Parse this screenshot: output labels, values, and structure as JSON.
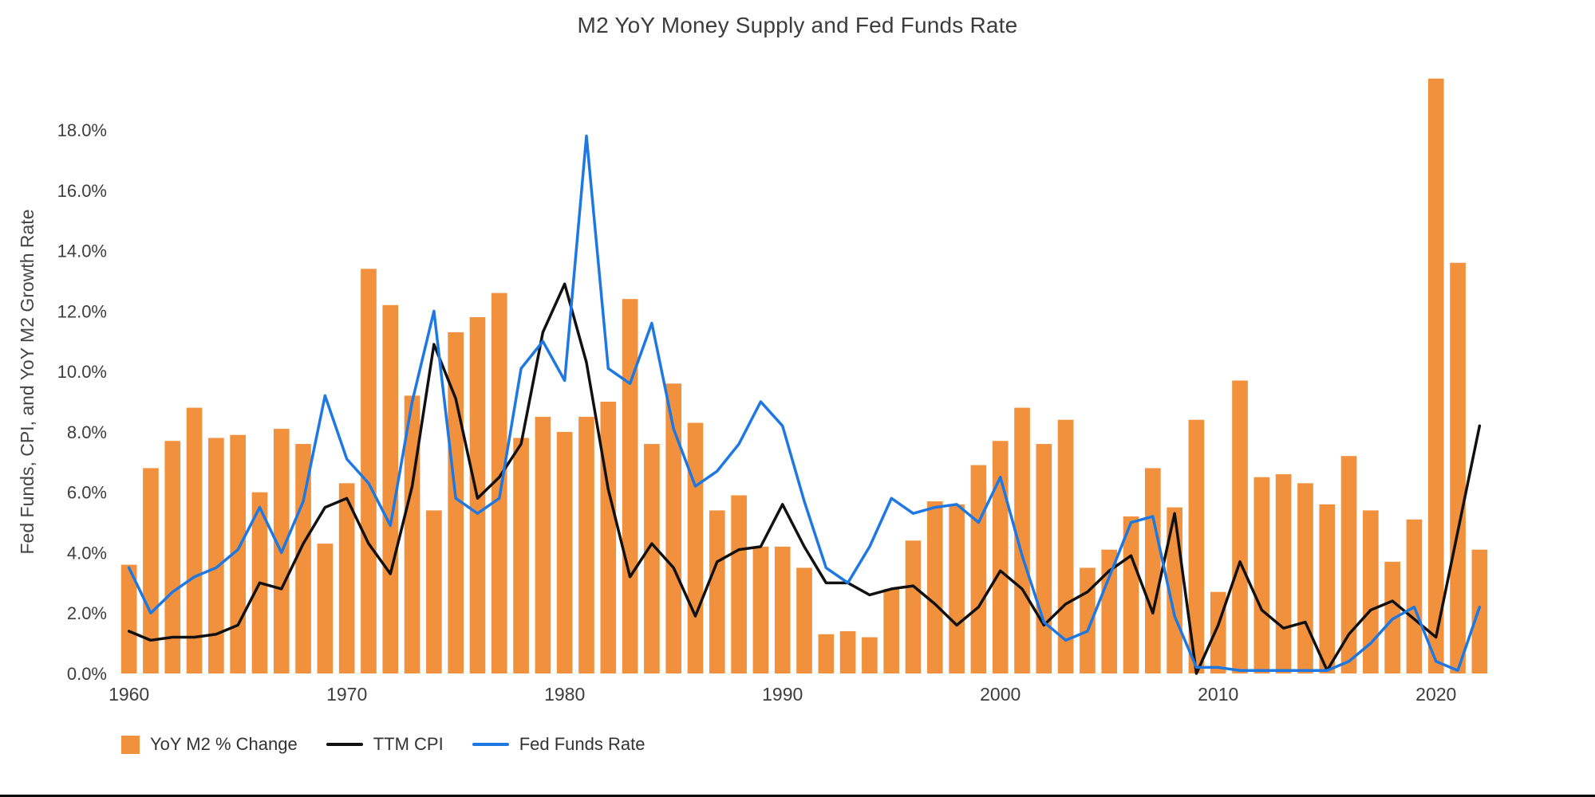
{
  "title": "M2 YoY Money Supply and Fed Funds Rate",
  "y_axis_label": "Fed Funds, CPI, and YoY M2 Growth Rate",
  "legend": {
    "m2": {
      "label": "YoY M2 % Change"
    },
    "cpi": {
      "label": "TTM CPI"
    },
    "fed": {
      "label": "Fed Funds Rate"
    }
  },
  "colors": {
    "bar_orange": "#F2913D",
    "cpi_black": "#111111",
    "fed_blue": "#1E78E2",
    "tick_text": "#3d3d3d"
  },
  "chart_data": {
    "type": "bar",
    "title": "M2 YoY Money Supply and Fed Funds Rate",
    "xlabel": "",
    "ylabel": "Fed Funds, CPI, and YoY M2 Growth Rate",
    "grid": false,
    "legend_position": "bottom-left",
    "ylim": [
      0,
      19.8
    ],
    "x": [
      1960,
      1961,
      1962,
      1963,
      1964,
      1965,
      1966,
      1967,
      1968,
      1969,
      1970,
      1971,
      1972,
      1973,
      1974,
      1975,
      1976,
      1977,
      1978,
      1979,
      1980,
      1981,
      1982,
      1983,
      1984,
      1985,
      1986,
      1987,
      1988,
      1989,
      1990,
      1991,
      1992,
      1993,
      1994,
      1995,
      1996,
      1997,
      1998,
      1999,
      2000,
      2001,
      2002,
      2003,
      2004,
      2005,
      2006,
      2007,
      2008,
      2009,
      2010,
      2011,
      2012,
      2013,
      2014,
      2015,
      2016,
      2017,
      2018,
      2019,
      2020,
      2021,
      2022
    ],
    "x_ticks": [
      1960,
      1970,
      1980,
      1990,
      2000,
      2010,
      2020
    ],
    "y_tick_values": [
      0,
      2,
      4,
      6,
      8,
      10,
      12,
      14,
      16,
      18
    ],
    "y_tick_labels": [
      "0.0%",
      "2.0%",
      "4.0%",
      "6.0%",
      "8.0%",
      "10.0%",
      "12.0%",
      "14.0%",
      "16.0%",
      "18.0%"
    ],
    "series": [
      {
        "name": "YoY M2 % Change",
        "type": "bar",
        "color": "#F2913D",
        "values": [
          3.6,
          6.8,
          7.7,
          8.8,
          7.8,
          7.9,
          6.0,
          8.1,
          7.6,
          4.3,
          6.3,
          13.4,
          12.2,
          9.2,
          5.4,
          11.3,
          11.8,
          12.6,
          7.8,
          8.5,
          8.0,
          8.5,
          9.0,
          12.4,
          7.6,
          9.6,
          8.3,
          5.4,
          5.9,
          4.2,
          4.2,
          3.5,
          1.3,
          1.4,
          1.2,
          2.8,
          4.4,
          5.7,
          5.6,
          6.9,
          7.7,
          8.8,
          7.6,
          8.4,
          3.5,
          4.1,
          5.2,
          6.8,
          5.5,
          8.4,
          2.7,
          9.7,
          6.5,
          6.6,
          6.3,
          5.6,
          7.2,
          5.4,
          3.7,
          5.1,
          19.7,
          13.6,
          4.1
        ]
      },
      {
        "name": "TTM CPI",
        "type": "line",
        "color": "#111111",
        "values": [
          1.4,
          1.1,
          1.2,
          1.2,
          1.3,
          1.6,
          3.0,
          2.8,
          4.3,
          5.5,
          5.8,
          4.3,
          3.3,
          6.2,
          10.9,
          9.1,
          5.8,
          6.5,
          7.6,
          11.3,
          12.9,
          10.3,
          6.1,
          3.2,
          4.3,
          3.5,
          1.9,
          3.7,
          4.1,
          4.2,
          5.6,
          4.2,
          3.0,
          3.0,
          2.6,
          2.8,
          2.9,
          2.3,
          1.6,
          2.2,
          3.4,
          2.8,
          1.6,
          2.3,
          2.7,
          3.4,
          3.9,
          2.0,
          5.3,
          0.0,
          1.6,
          3.7,
          2.1,
          1.5,
          1.7,
          0.1,
          1.3,
          2.1,
          2.4,
          1.8,
          1.2,
          4.7,
          8.2
        ]
      },
      {
        "name": "Fed Funds Rate",
        "type": "line",
        "color": "#1E78E2",
        "values": [
          3.5,
          2.0,
          2.7,
          3.2,
          3.5,
          4.1,
          5.5,
          4.0,
          5.7,
          9.2,
          7.1,
          6.3,
          4.9,
          9.0,
          12.0,
          5.8,
          5.3,
          5.8,
          10.1,
          11.0,
          9.7,
          17.8,
          10.1,
          9.6,
          11.6,
          8.1,
          6.2,
          6.7,
          7.6,
          9.0,
          8.2,
          5.7,
          3.5,
          3.0,
          4.2,
          5.8,
          5.3,
          5.5,
          5.6,
          5.0,
          6.5,
          3.9,
          1.7,
          1.1,
          1.4,
          3.2,
          5.0,
          5.2,
          1.9,
          0.2,
          0.2,
          0.1,
          0.1,
          0.1,
          0.1,
          0.1,
          0.4,
          1.0,
          1.8,
          2.2,
          0.4,
          0.1,
          2.2
        ]
      }
    ]
  }
}
